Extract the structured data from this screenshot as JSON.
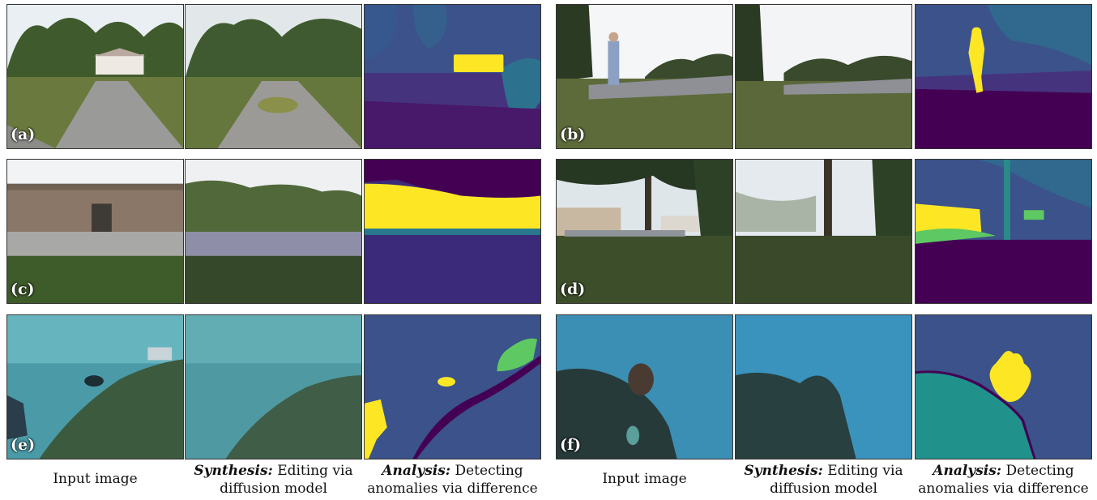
{
  "panel_labels": [
    "(a)",
    "(b)",
    "(c)",
    "(d)",
    "(e)",
    "(f)"
  ],
  "captions": {
    "input": "Input image",
    "synthesis_bold": "Synthesis:",
    "synthesis_rest": "Editing via diffusion model",
    "analysis_bold": "Analysis:",
    "analysis_rest": "Detecting anomalies via difference"
  },
  "palette": {
    "viridis_dark": "#440154",
    "viridis_purple": "#3b2a7a",
    "viridis_blue": "#3b528b",
    "viridis_teal": "#21918c",
    "viridis_green": "#5ec962",
    "viridis_yellow": "#fde725"
  }
}
